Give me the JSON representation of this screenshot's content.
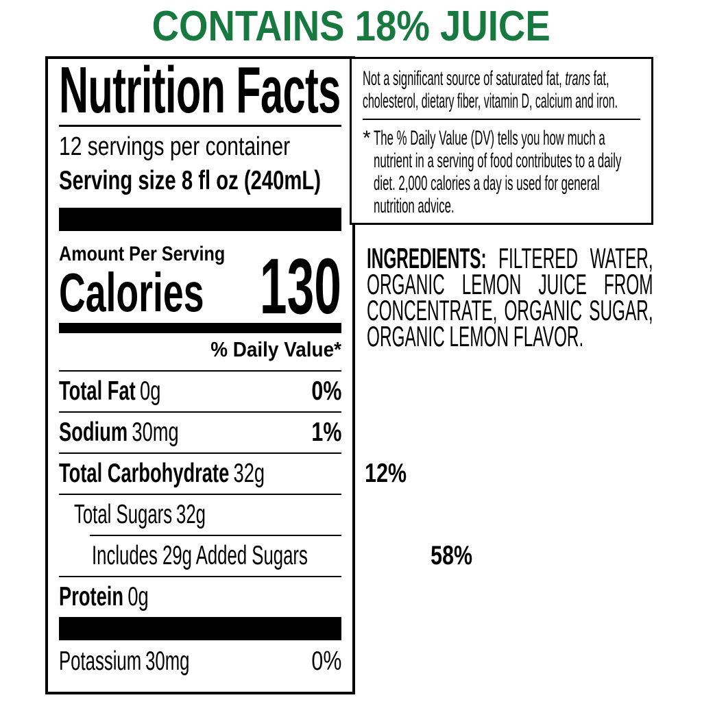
{
  "banner": {
    "text": "CONTAINS 18% JUICE",
    "color": "#17793F"
  },
  "nutrition_facts": {
    "title": "Nutrition Facts",
    "servings_per_container": "12 servings per container",
    "serving_size": "Serving size 8 fl oz (240mL)",
    "amount_per_serving": "Amount Per Serving",
    "calories_label": "Calories",
    "calories_value": "130",
    "daily_value_header": "% Daily Value*",
    "rows": [
      {
        "name": "Total Fat",
        "amount": "0g",
        "daily_value": "0%"
      },
      {
        "name": "Sodium",
        "amount": "30mg",
        "daily_value": "1%"
      },
      {
        "name": "Total Carbohydrate",
        "amount": "32g",
        "daily_value": "12%"
      },
      {
        "name": "Total Sugars",
        "amount": "32g",
        "daily_value": ""
      },
      {
        "name": "Includes 29g Added Sugars",
        "amount": "",
        "daily_value": "58%"
      },
      {
        "name": "Protein",
        "amount": "0g",
        "daily_value": ""
      },
      {
        "name": "Potassium",
        "amount": "30mg",
        "daily_value": "0%"
      }
    ]
  },
  "disclaimer_box": {
    "line1_pre": "Not a significant source of saturated fat, ",
    "line1_italic": "trans",
    "line1_post": " fat,",
    "line2": "cholesterol, dietary fiber, vitamin D, calcium and iron.",
    "footnote_marker": "*",
    "footnote_lines": [
      "The % Daily Value (DV) tells you how much a",
      "nutrient in a serving of food contributes to a daily",
      "diet. 2,000 calories a day is used for general",
      "nutrition advice."
    ]
  },
  "ingredients": {
    "heading": "INGREDIENTS:",
    "line1_rest": "FILTERED WATER,",
    "line2": "ORGANIC LEMON JUICE FROM",
    "line3": "CONCENTRATE, ORGANIC SUGAR,",
    "line4": "ORGANIC LEMON FLAVOR."
  }
}
